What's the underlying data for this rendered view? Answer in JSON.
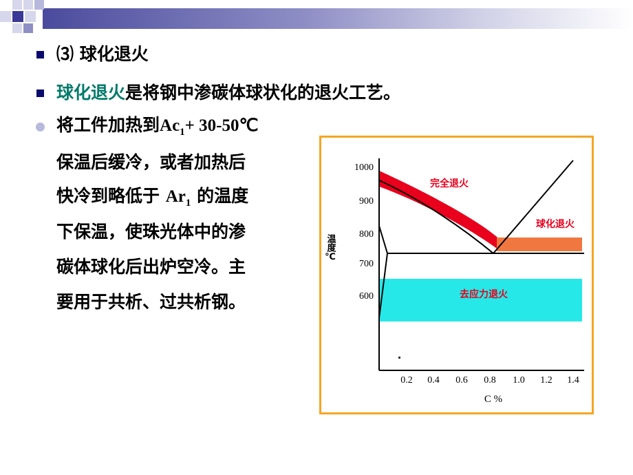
{
  "heading": {
    "number": "⑶",
    "title": "球化退火"
  },
  "definition": {
    "term": "球化退火",
    "rest": "是将钢中渗碳体球状化的退火工艺。"
  },
  "process": {
    "line1_prefix": "将工件加热到",
    "ac_main": "Ac",
    "ac_sub": "1",
    "line1_suffix": "+ 30-50℃",
    "line2": "保温后缓冷，或者加热后",
    "line3_prefix": "快冷到略低于 ",
    "ar_main": "Ar",
    "ar_sub": "1",
    "line3_suffix": " 的温度",
    "line4": "下保温，使珠光体中的渗",
    "line5": "碳体球化后出炉空冷。主",
    "line6": "要用于共析、过共析钢。"
  },
  "chart": {
    "y_axis_label": "温度℃",
    "x_axis_label": "C %",
    "y_ticks": [
      "1000",
      "900",
      "800",
      "700",
      "600"
    ],
    "x_ticks": [
      "0.2",
      "0.4",
      "0.6",
      "0.8",
      "1.0",
      "1.2",
      "1.4"
    ],
    "bands": {
      "full": "完全退火",
      "spheroidize": "球化退火",
      "stress_relief": "去应力退火"
    },
    "colors": {
      "full": "#e8001c",
      "spheroidize": "#f07840",
      "stress_relief": "#26e8e8",
      "frame": "#f5a623"
    }
  },
  "colors": {
    "accent_text": "#007a6a",
    "bullet": "#0a0a6e",
    "dot": "#b9b9dc"
  }
}
